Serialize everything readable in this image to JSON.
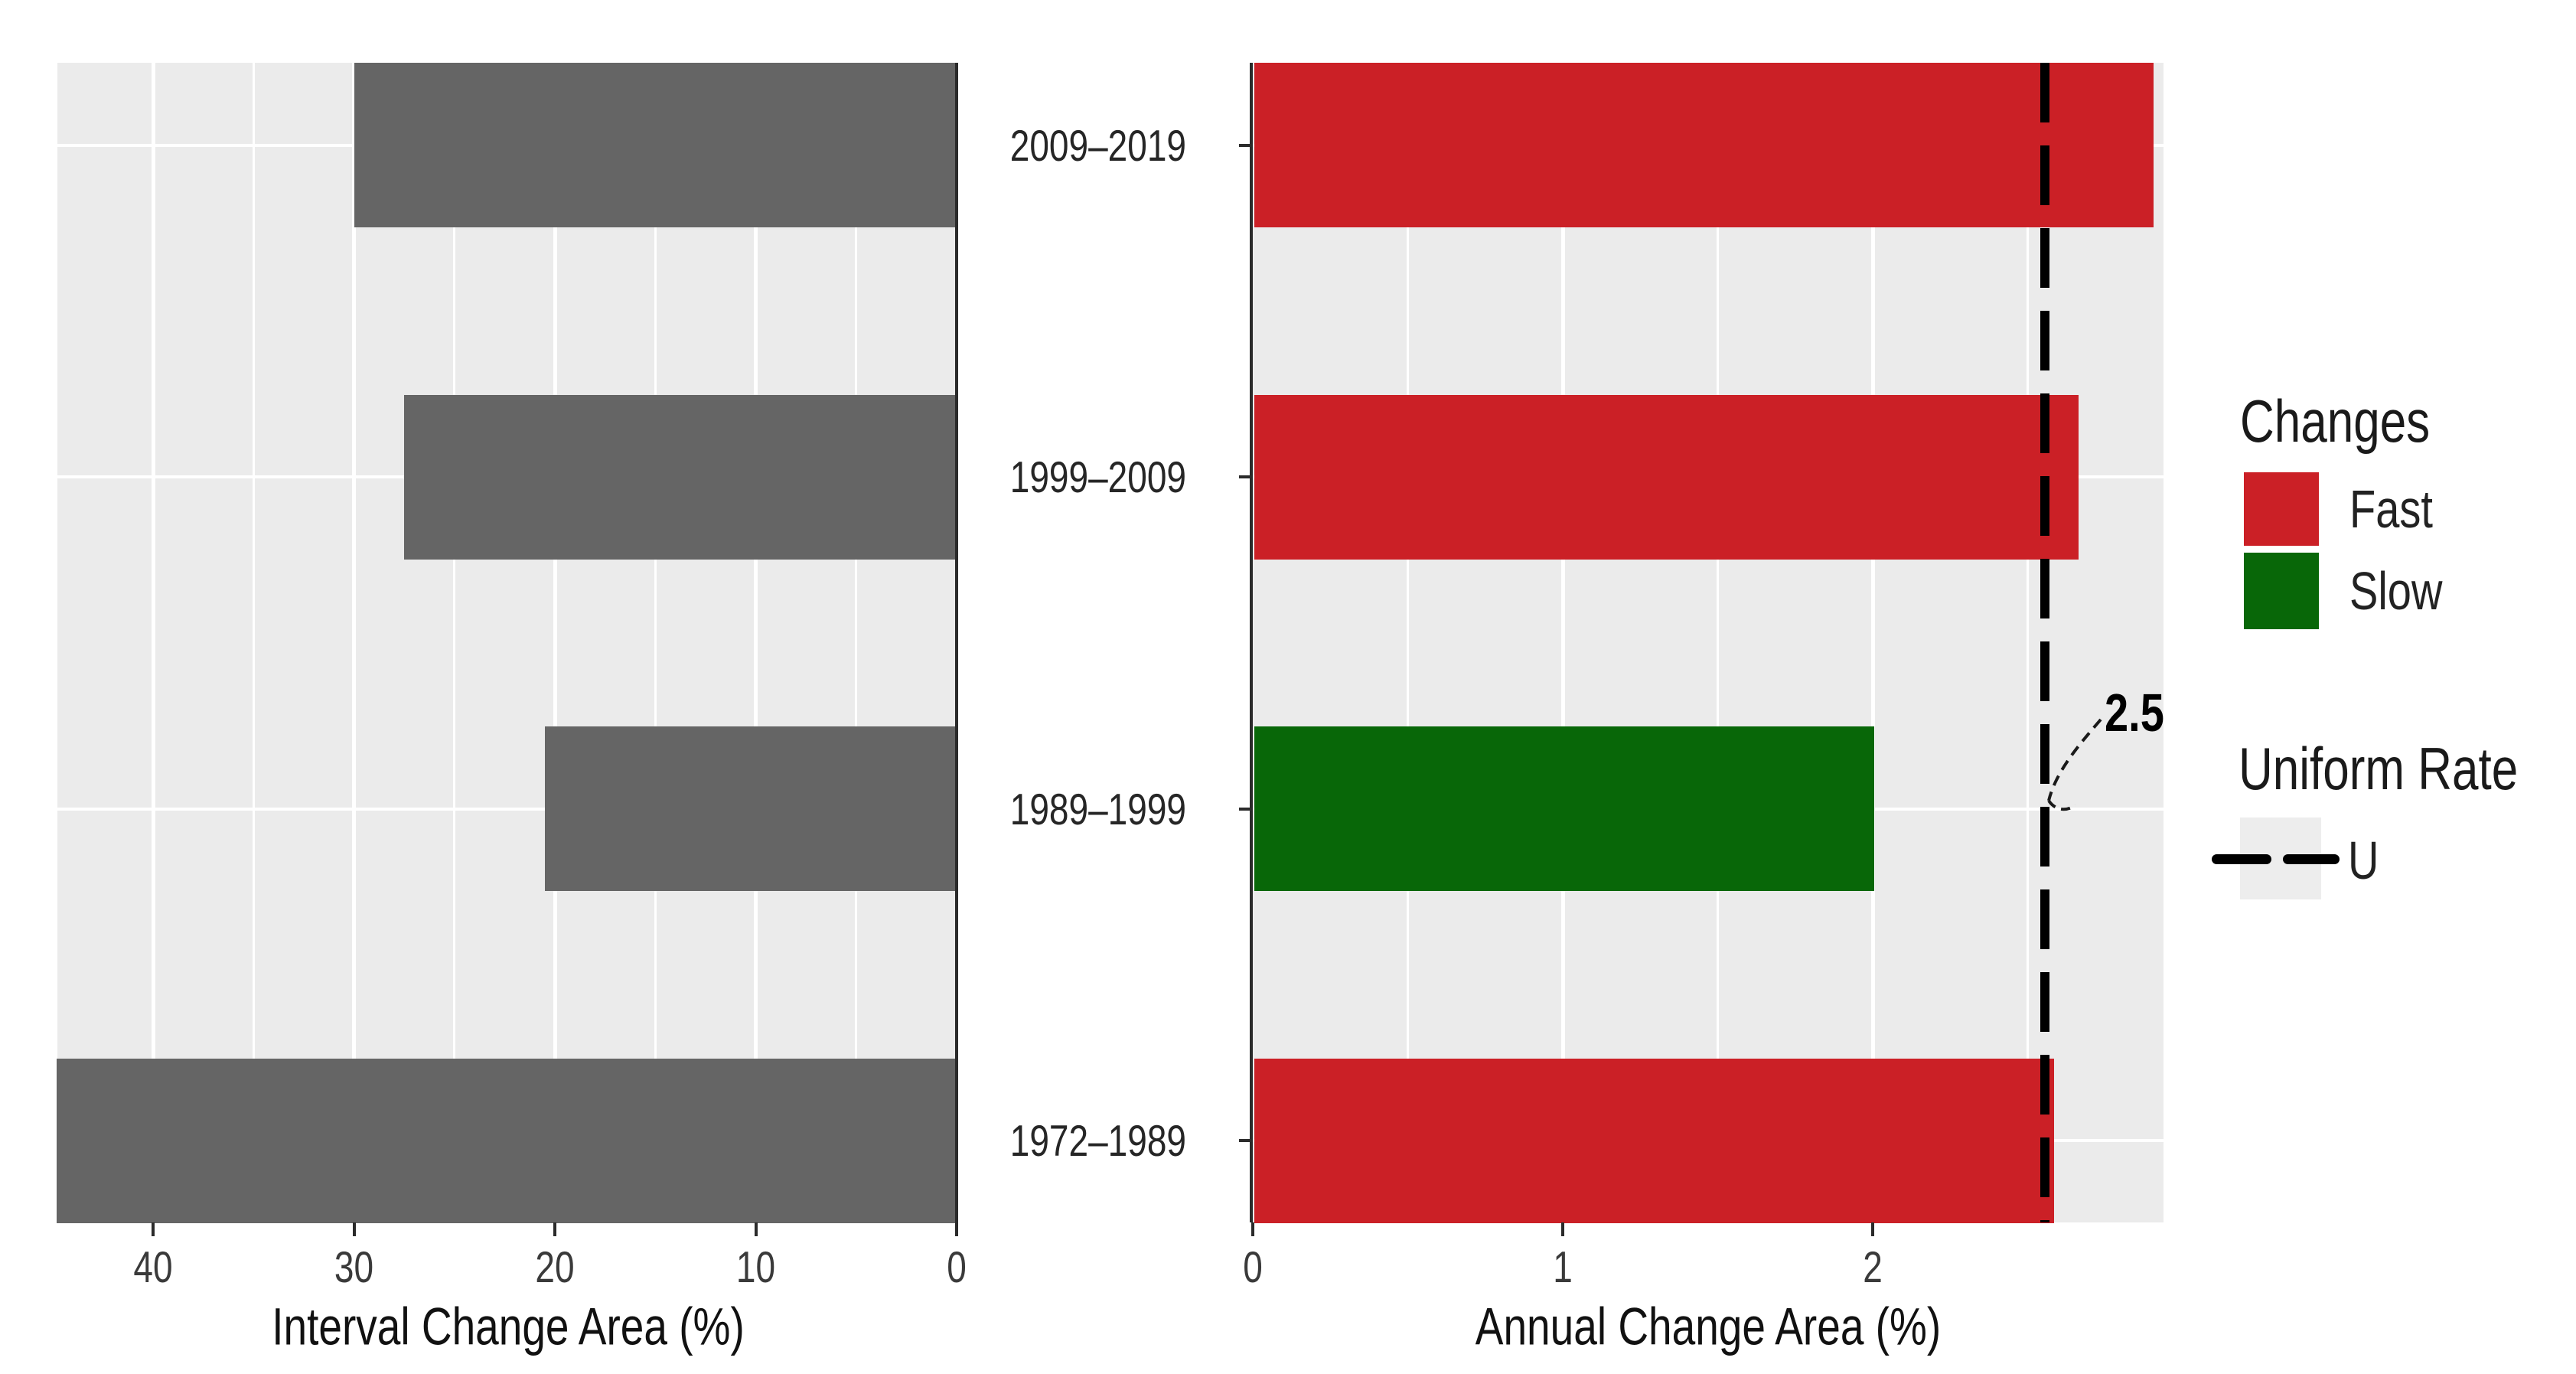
{
  "chart_data": {
    "type": "bar",
    "orientation": "horizontal",
    "categories": [
      "2009–2019",
      "1999–2009",
      "1989–1999",
      "1972–1989"
    ],
    "panels": [
      {
        "id": "interval",
        "xlabel": "Interval Change Area (%)",
        "values": [
          30,
          27.5,
          20.5,
          44.8
        ],
        "ticks": [
          40,
          30,
          20,
          10,
          0
        ],
        "minor_ticks": [
          35,
          25,
          15,
          5
        ],
        "xlim": [
          45,
          0
        ],
        "reversed": true,
        "bar_color": "#656565",
        "grid": true
      },
      {
        "id": "annual",
        "xlabel": "Annual Change Area (%)",
        "values": [
          2.9,
          2.66,
          2.0,
          2.58
        ],
        "speeds": [
          "Fast",
          "Fast",
          "Slow",
          "Fast"
        ],
        "ticks": [
          0,
          1,
          2
        ],
        "minor_ticks": [
          0.5,
          1.5,
          2.5
        ],
        "xlim": [
          0,
          2.94
        ],
        "reversed": false,
        "uniform_rate": 2.5,
        "uniform_rate_label": "2.5",
        "grid": true
      }
    ],
    "legend_position": "right",
    "colors": {
      "fast": "#CB2026",
      "slow": "#086708",
      "interval_bar": "#656565",
      "panel_bg": "#EBEBEB",
      "grid": "#FFFFFF",
      "uniform_line": "#000000"
    }
  },
  "legend": {
    "changes_title": "Changes",
    "fast_label": "Fast",
    "slow_label": "Slow",
    "uniform_title": "Uniform Rate",
    "uniform_item_label": "U"
  },
  "annotation": {
    "uniform_value": "2.5"
  }
}
